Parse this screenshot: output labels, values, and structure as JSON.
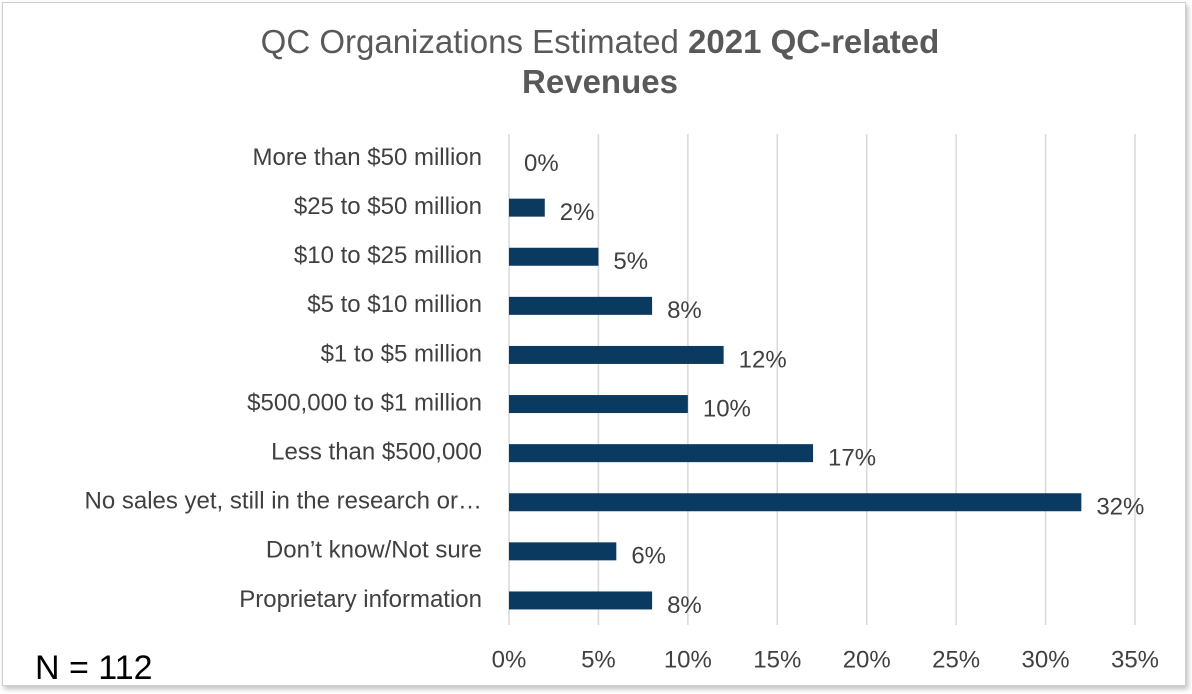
{
  "chart_data": {
    "type": "bar",
    "orientation": "horizontal",
    "title": {
      "normal": "QC Organizations Estimated",
      "bold": "2021 QC-related Revenues"
    },
    "annotation": "N = 112",
    "categories": [
      "More than $50 million",
      "$25 to $50 million",
      "$10 to $25 million",
      "$5 to $10 million",
      "$1 to $5 million",
      "$500,000 to $1 million",
      "Less than $500,000",
      "No sales yet, still in the research or…",
      "Don’t know/Not sure",
      "Proprietary information"
    ],
    "values": [
      0,
      2,
      5,
      8,
      12,
      10,
      17,
      32,
      6,
      8
    ],
    "value_labels": [
      "0%",
      "2%",
      "5%",
      "8%",
      "12%",
      "10%",
      "17%",
      "32%",
      "6%",
      "8%"
    ],
    "color": "#0b3a60",
    "xlim": [
      0,
      35
    ],
    "xticks": [
      {
        "value": 0,
        "label": "0%"
      },
      {
        "value": 5,
        "label": "5%"
      },
      {
        "value": 10,
        "label": "10%"
      },
      {
        "value": 15,
        "label": "15%"
      },
      {
        "value": 20,
        "label": "20%"
      },
      {
        "value": 25,
        "label": "25%"
      },
      {
        "value": 30,
        "label": "30%"
      },
      {
        "value": 35,
        "label": "35%"
      }
    ],
    "grid": true
  }
}
